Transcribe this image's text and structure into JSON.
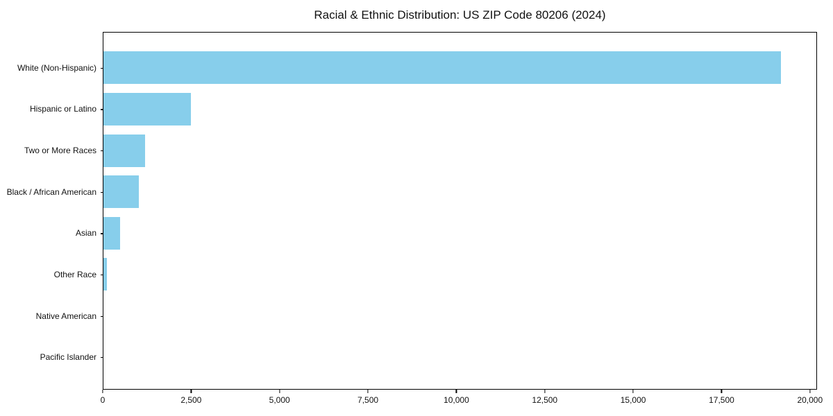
{
  "title": "Racial & Ethnic Distribution: US ZIP Code 80206 (2024)",
  "colors": {
    "bar": "#87CEEB",
    "background": "#ffffff",
    "spine": "#000000",
    "text": "#111111"
  },
  "chart_data": {
    "type": "bar",
    "orientation": "horizontal",
    "title": "Racial & Ethnic Distribution: US ZIP Code 80206 (2024)",
    "xlabel": "",
    "ylabel": "",
    "categories": [
      "White (Non-Hispanic)",
      "Hispanic or Latino",
      "Two or More Races",
      "Black / African American",
      "Asian",
      "Other Race",
      "Native American",
      "Pacific Islander"
    ],
    "values": [
      19200,
      2470,
      1180,
      1000,
      480,
      90,
      0,
      0
    ],
    "bar_color": "#87CEEB",
    "xlim": [
      0,
      20200
    ],
    "xticks": [
      0,
      2500,
      5000,
      7500,
      10000,
      12500,
      15000,
      17500,
      20000
    ],
    "xtick_labels": [
      "0",
      "2,500",
      "5,000",
      "7,500",
      "10,000",
      "12,500",
      "15,000",
      "17,500",
      "20,000"
    ],
    "grid": false,
    "legend": null
  }
}
